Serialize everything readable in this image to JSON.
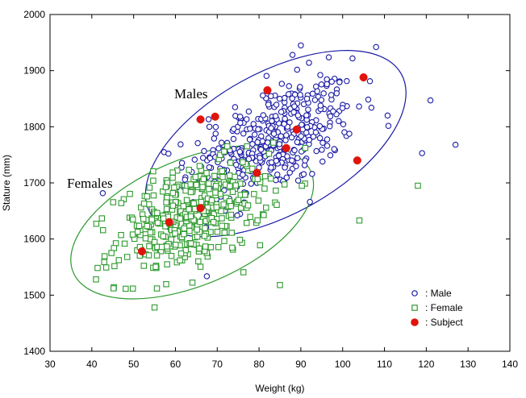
{
  "chart_data": {
    "type": "scatter",
    "title": "",
    "xlabel": "Weight (kg)",
    "ylabel": "Stature (mm)",
    "xlim": [
      30,
      140
    ],
    "ylim": [
      1400,
      2000
    ],
    "xticks": [
      30,
      40,
      50,
      60,
      70,
      80,
      90,
      100,
      110,
      120,
      130,
      140
    ],
    "yticks": [
      1400,
      1500,
      1600,
      1700,
      1800,
      1900,
      2000
    ],
    "grid": false,
    "legend_position": "bottom-right",
    "annotations": [
      {
        "text": "Males",
        "x": 73.5,
        "y": 1812
      },
      {
        "text": "Females",
        "x": 40.5,
        "y": 1700
      }
    ],
    "ellipses": [
      {
        "name": "Males",
        "center_x": 84,
        "center_y": 1770,
        "color": "#1a1aa6"
      },
      {
        "name": "Females",
        "center_x": 64,
        "center_y": 1630,
        "color": "#2e9a2e"
      }
    ],
    "series": [
      {
        "name": ": Male",
        "marker": "circle",
        "color": "#1a1aa6",
        "n_points": 430,
        "center_x": 83,
        "center_y": 1775,
        "sd_x": 10,
        "sd_y": 55,
        "corr": 0.52,
        "outliers": [
          {
            "x": 90,
            "y": 1945
          },
          {
            "x": 108,
            "y": 1942
          },
          {
            "x": 88,
            "y": 1928
          },
          {
            "x": 127,
            "y": 1768
          },
          {
            "x": 119,
            "y": 1753
          },
          {
            "x": 121,
            "y": 1847
          }
        ]
      },
      {
        "name": ": Female",
        "marker": "square",
        "color": "#2e9a2e",
        "n_points": 400,
        "center_x": 64,
        "center_y": 1640,
        "sd_x": 9,
        "sd_y": 48,
        "corr": 0.45,
        "outliers": [
          {
            "x": 41,
            "y": 1528
          },
          {
            "x": 118,
            "y": 1695
          },
          {
            "x": 104,
            "y": 1633
          },
          {
            "x": 85,
            "y": 1518
          },
          {
            "x": 55,
            "y": 1478
          }
        ]
      },
      {
        "name": ": Subject",
        "marker": "filled-circle",
        "color": "#e0140c",
        "x": [
          52,
          58.5,
          66,
          69.5,
          66,
          79.5,
          82,
          86.5,
          89,
          103.5,
          105
        ],
        "y": [
          1578,
          1630,
          1655,
          1818,
          1813,
          1718,
          1865,
          1762,
          1795,
          1740,
          1888
        ]
      }
    ]
  }
}
